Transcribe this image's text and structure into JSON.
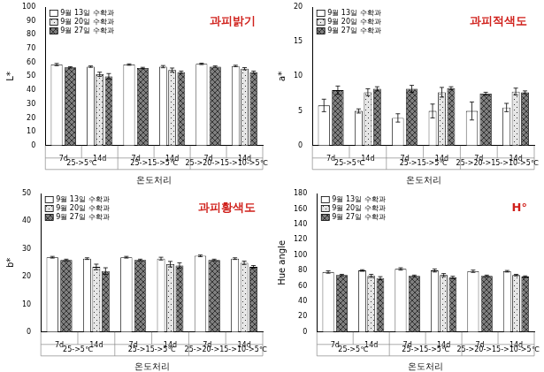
{
  "chart_data": [
    {
      "type": "bar",
      "title": "과피밝기",
      "y_label": "L*",
      "x_label": "온도처리",
      "categories": [
        "7d",
        "14d",
        "7d",
        "14d",
        "7d",
        "14d"
      ],
      "groups": [
        "25->5℃",
        "25->15->5℃",
        "25->20->15->10->5℃"
      ],
      "series": [
        {
          "name": "9월 13일 수확과",
          "color": "#ffffff",
          "values": [
            58.5,
            57,
            58.5,
            57,
            59,
            57.5
          ],
          "errors": [
            0.8,
            0.5,
            0.5,
            0.8,
            0.5,
            0.5
          ]
        },
        {
          "name": "9월 20일 수확과",
          "color": "#e6e6e6",
          "values": [
            null,
            51.5,
            null,
            54.5,
            null,
            55.5
          ],
          "errors": [
            null,
            1.5,
            null,
            1.5,
            null,
            0.8
          ]
        },
        {
          "name": "9월 27일 수확과",
          "color": "#7f7f7f",
          "values": [
            56.5,
            50,
            56,
            53,
            57,
            53
          ],
          "errors": [
            0.5,
            2,
            0.5,
            0.8,
            0.5,
            0.8
          ]
        }
      ],
      "ylim": [
        0,
        100
      ],
      "yticks": [
        0,
        10,
        20,
        30,
        40,
        50,
        60,
        70,
        80,
        90,
        100
      ],
      "grid": false,
      "legend": "upper left"
    },
    {
      "type": "bar",
      "title": "과피적색도",
      "y_label": "a*",
      "x_label": "온도처리",
      "categories": [
        "7d",
        "14d",
        "7d",
        "14d",
        "7d",
        "14d"
      ],
      "groups": [
        "25->5℃",
        "25->15->5℃",
        "25->20->15->10->5℃"
      ],
      "series": [
        {
          "name": "9월 13일 수확과",
          "color": "#ffffff",
          "values": [
            5.8,
            5,
            4,
            5,
            5,
            5.5
          ],
          "errors": [
            0.9,
            0.3,
            0.6,
            1.0,
            1.3,
            0.6
          ]
        },
        {
          "name": "9월 20일 수확과",
          "color": "#e6e6e6",
          "values": [
            null,
            7.7,
            null,
            7.7,
            null,
            7.8
          ],
          "errors": [
            null,
            0.5,
            null,
            0.7,
            null,
            0.5
          ]
        },
        {
          "name": "9월 27일 수확과",
          "color": "#7f7f7f",
          "values": [
            8,
            8.2,
            8.2,
            8.3,
            7.5,
            7.7
          ],
          "errors": [
            0.6,
            0.3,
            0.5,
            0.2,
            0.2,
            0.2
          ]
        }
      ],
      "ylim": [
        0,
        20
      ],
      "yticks": [
        0,
        5,
        10,
        15,
        20
      ],
      "grid": false,
      "legend": "upper left"
    },
    {
      "type": "bar",
      "title": "과피황색도",
      "y_label": "b*",
      "x_label": "온도처리",
      "categories": [
        "7d",
        "14d",
        "7d",
        "14d",
        "7d",
        "14d"
      ],
      "groups": [
        "25->5℃",
        "25->15->5℃",
        "25->20->15->10->5℃"
      ],
      "series": [
        {
          "name": "9월 13일 수확과",
          "color": "#ffffff",
          "values": [
            27,
            26.5,
            27,
            26.5,
            27.5,
            26.5
          ],
          "errors": [
            0.3,
            0.3,
            0.3,
            0.5,
            0.3,
            0.3
          ]
        },
        {
          "name": "9월 20일 수확과",
          "color": "#e6e6e6",
          "values": [
            null,
            23.5,
            null,
            24.5,
            null,
            25
          ],
          "errors": [
            null,
            1,
            null,
            1,
            null,
            0.6
          ]
        },
        {
          "name": "9월 27일 수확과",
          "color": "#7f7f7f",
          "values": [
            26,
            22,
            26,
            24,
            26,
            23.5
          ],
          "errors": [
            0.3,
            1.2,
            0.3,
            1,
            0.3,
            0.5
          ]
        }
      ],
      "ylim": [
        0,
        50
      ],
      "yticks": [
        0,
        10,
        20,
        30,
        40,
        50
      ],
      "grid": false,
      "legend": "upper left"
    },
    {
      "type": "bar",
      "title": "H°",
      "y_label": "Hue angle",
      "x_label": "온도처리",
      "categories": [
        "7d",
        "14d",
        "7d",
        "14d",
        "7d",
        "14d"
      ],
      "groups": [
        "25->5℃",
        "25->15->5℃",
        "25->20->15->10->5℃"
      ],
      "series": [
        {
          "name": "9월 13일 수확과",
          "color": "#ffffff",
          "values": [
            78,
            80,
            82,
            80,
            79,
            79
          ],
          "errors": [
            1.5,
            1,
            1.5,
            2,
            1.5,
            1
          ]
        },
        {
          "name": "9월 20일 수확과",
          "color": "#e6e6e6",
          "values": [
            null,
            73,
            null,
            74,
            null,
            74
          ],
          "errors": [
            null,
            2,
            null,
            2,
            null,
            1
          ]
        },
        {
          "name": "9월 27일 수확과",
          "color": "#7f7f7f",
          "values": [
            74,
            70,
            73,
            71,
            73,
            72
          ],
          "errors": [
            1,
            2,
            1,
            1.5,
            1,
            1
          ]
        }
      ],
      "ylim": [
        0,
        180
      ],
      "yticks": [
        0,
        20,
        40,
        60,
        80,
        100,
        120,
        140,
        160,
        180
      ],
      "grid": false,
      "legend": "upper left"
    }
  ]
}
